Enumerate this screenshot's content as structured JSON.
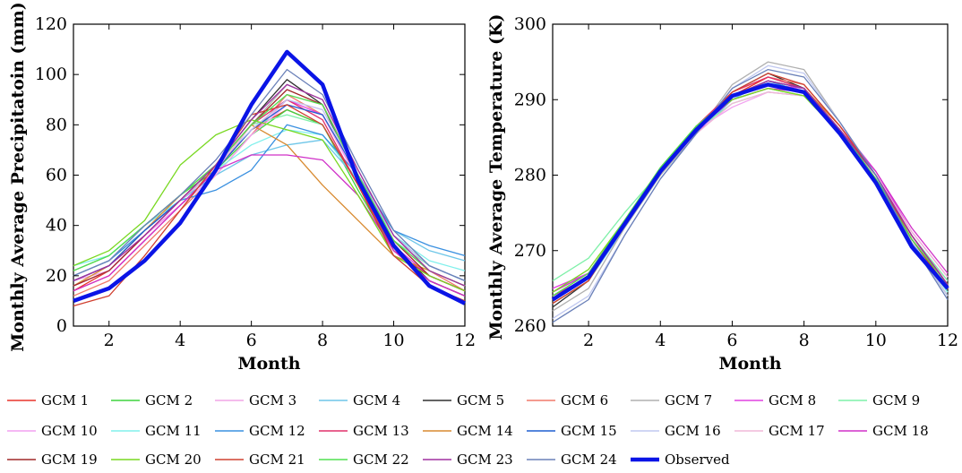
{
  "chart_data": [
    {
      "type": "line",
      "xlabel": "Month",
      "ylabel": "Monthly Average Precipitatoin (mm)",
      "x": [
        1,
        2,
        3,
        4,
        5,
        6,
        7,
        8,
        9,
        10,
        11,
        12
      ],
      "xlim": [
        1,
        12
      ],
      "ylim": [
        0,
        120
      ],
      "xticks": [
        2,
        4,
        6,
        8,
        10,
        12
      ],
      "yticks": [
        0,
        20,
        40,
        60,
        80,
        100,
        120
      ],
      "grid": false,
      "legend_position": "bottom",
      "series": [
        {
          "name": "GCM 1",
          "color": "#e8352b",
          "values": [
            14,
            22,
            36,
            50,
            62,
            78,
            86,
            80,
            56,
            30,
            18,
            12
          ]
        },
        {
          "name": "GCM 2",
          "color": "#3fd43f",
          "values": [
            22,
            28,
            40,
            52,
            62,
            76,
            86,
            80,
            54,
            30,
            20,
            14
          ]
        },
        {
          "name": "GCM 3",
          "color": "#f0a6e6",
          "values": [
            18,
            22,
            36,
            48,
            60,
            76,
            90,
            86,
            60,
            36,
            22,
            16
          ]
        },
        {
          "name": "GCM 4",
          "color": "#6ec6e8",
          "values": [
            20,
            26,
            38,
            50,
            60,
            68,
            72,
            74,
            58,
            38,
            30,
            26
          ]
        },
        {
          "name": "GCM 5",
          "color": "#303030",
          "values": [
            18,
            24,
            38,
            50,
            64,
            82,
            98,
            88,
            58,
            32,
            18,
            12
          ]
        },
        {
          "name": "GCM 6",
          "color": "#f07a6a",
          "values": [
            12,
            18,
            32,
            46,
            60,
            76,
            92,
            84,
            58,
            34,
            22,
            14
          ]
        },
        {
          "name": "GCM 7",
          "color": "#b0b0b0",
          "values": [
            22,
            28,
            40,
            50,
            62,
            80,
            96,
            90,
            62,
            36,
            22,
            16
          ]
        },
        {
          "name": "GCM 8",
          "color": "#e040e0",
          "values": [
            16,
            22,
            36,
            48,
            62,
            78,
            90,
            84,
            58,
            32,
            20,
            14
          ]
        },
        {
          "name": "GCM 9",
          "color": "#7ef0a8",
          "values": [
            20,
            26,
            40,
            52,
            64,
            80,
            84,
            80,
            56,
            34,
            24,
            18
          ]
        },
        {
          "name": "GCM 10",
          "color": "#f2a0f0",
          "values": [
            18,
            24,
            36,
            48,
            60,
            76,
            88,
            84,
            58,
            34,
            22,
            16
          ]
        },
        {
          "name": "GCM 11",
          "color": "#80f0ec",
          "values": [
            24,
            28,
            40,
            50,
            62,
            72,
            78,
            76,
            58,
            36,
            26,
            22
          ]
        },
        {
          "name": "GCM 12",
          "color": "#3a90e0",
          "values": [
            20,
            26,
            38,
            50,
            54,
            62,
            80,
            76,
            60,
            38,
            32,
            28
          ]
        },
        {
          "name": "GCM 13",
          "color": "#e0306a",
          "values": [
            14,
            20,
            34,
            48,
            62,
            80,
            90,
            82,
            56,
            30,
            20,
            14
          ]
        },
        {
          "name": "GCM 14",
          "color": "#d88a30",
          "values": [
            16,
            24,
            38,
            52,
            64,
            80,
            72,
            56,
            42,
            28,
            22,
            16
          ]
        },
        {
          "name": "GCM 15",
          "color": "#1f5fd0",
          "values": [
            18,
            24,
            38,
            50,
            62,
            78,
            88,
            84,
            60,
            36,
            24,
            18
          ]
        },
        {
          "name": "GCM 16",
          "color": "#c0c8f0",
          "values": [
            20,
            26,
            40,
            52,
            64,
            78,
            90,
            86,
            60,
            36,
            24,
            18
          ]
        },
        {
          "name": "GCM 17",
          "color": "#f0b8d8",
          "values": [
            16,
            22,
            36,
            50,
            62,
            80,
            92,
            88,
            62,
            36,
            22,
            16
          ]
        },
        {
          "name": "GCM 18",
          "color": "#d030c8",
          "values": [
            14,
            20,
            34,
            48,
            62,
            68,
            68,
            66,
            52,
            30,
            18,
            12
          ]
        },
        {
          "name": "GCM 19",
          "color": "#a02828",
          "values": [
            16,
            22,
            36,
            50,
            64,
            80,
            94,
            88,
            60,
            34,
            20,
            14
          ]
        },
        {
          "name": "GCM 20",
          "color": "#78d820",
          "values": [
            24,
            30,
            42,
            64,
            76,
            82,
            78,
            74,
            52,
            28,
            20,
            14
          ]
        },
        {
          "name": "GCM 21",
          "color": "#d04030",
          "values": [
            8,
            12,
            28,
            46,
            64,
            84,
            88,
            80,
            56,
            28,
            16,
            10
          ]
        },
        {
          "name": "GCM 22",
          "color": "#50e050",
          "values": [
            22,
            28,
            40,
            52,
            64,
            80,
            92,
            88,
            60,
            34,
            22,
            16
          ]
        },
        {
          "name": "GCM 23",
          "color": "#a030a0",
          "values": [
            18,
            24,
            36,
            50,
            64,
            82,
            96,
            90,
            62,
            36,
            22,
            16
          ]
        },
        {
          "name": "GCM 24",
          "color": "#6a80b8",
          "values": [
            20,
            26,
            40,
            52,
            66,
            84,
            102,
            92,
            64,
            38,
            24,
            18
          ]
        },
        {
          "name": "Observed",
          "color": "#0a14e6",
          "values": [
            10,
            15,
            26,
            41,
            62,
            88,
            109,
            96,
            58,
            32,
            16,
            9
          ]
        }
      ]
    },
    {
      "type": "line",
      "xlabel": "Month",
      "ylabel": "Monthly Average Temperature (K)",
      "x": [
        1,
        2,
        3,
        4,
        5,
        6,
        7,
        8,
        9,
        10,
        11,
        12
      ],
      "xlim": [
        1,
        12
      ],
      "ylim": [
        260,
        300
      ],
      "xticks": [
        2,
        4,
        6,
        8,
        10,
        12
      ],
      "yticks": [
        260,
        270,
        280,
        290,
        300
      ],
      "grid": false,
      "legend_position": "bottom",
      "series": [
        {
          "name": "GCM 1",
          "color": "#e8352b",
          "values": [
            263.5,
            266.5,
            273.5,
            280.5,
            286,
            290.5,
            293,
            291.5,
            286,
            279.5,
            271.5,
            265
          ]
        },
        {
          "name": "GCM 2",
          "color": "#3fd43f",
          "values": [
            264.5,
            267,
            274,
            281,
            286.5,
            290,
            291.5,
            290.5,
            285.5,
            279,
            271,
            264.5
          ]
        },
        {
          "name": "GCM 3",
          "color": "#f0a6e6",
          "values": [
            264,
            266.5,
            273.5,
            280.5,
            286,
            290.5,
            292,
            291,
            285.5,
            279.5,
            271.5,
            266
          ]
        },
        {
          "name": "GCM 4",
          "color": "#6ec6e8",
          "values": [
            263,
            266,
            273,
            280,
            285.5,
            290,
            292.5,
            291,
            285.5,
            279,
            271,
            265
          ]
        },
        {
          "name": "GCM 5",
          "color": "#303030",
          "values": [
            262.5,
            266,
            273.5,
            280.5,
            286,
            291,
            293.5,
            291.5,
            286,
            279.5,
            271,
            264
          ]
        },
        {
          "name": "GCM 6",
          "color": "#f07a6a",
          "values": [
            263.5,
            266.5,
            273.5,
            280,
            286,
            291,
            293,
            292,
            286.5,
            280,
            272,
            265.5
          ]
        },
        {
          "name": "GCM 7",
          "color": "#b0b0b0",
          "values": [
            262,
            265,
            273,
            280,
            285.5,
            292,
            295,
            294,
            287,
            280,
            271,
            264
          ]
        },
        {
          "name": "GCM 8",
          "color": "#e040e0",
          "values": [
            265,
            267,
            274,
            280.5,
            285.5,
            290.5,
            292,
            291.5,
            286.5,
            280.5,
            272.5,
            266.5
          ]
        },
        {
          "name": "GCM 9",
          "color": "#7ef0a8",
          "values": [
            266,
            269,
            275,
            280.5,
            286,
            289.5,
            291,
            290.5,
            285.5,
            279.5,
            272,
            266
          ]
        },
        {
          "name": "GCM 10",
          "color": "#f2a0f0",
          "values": [
            264,
            267,
            274,
            280.5,
            286,
            289,
            291,
            290.5,
            286,
            280,
            272,
            265.5
          ]
        },
        {
          "name": "GCM 11",
          "color": "#80f0ec",
          "values": [
            263,
            266,
            273.5,
            280.5,
            286,
            290.5,
            292.5,
            291.5,
            286,
            279.5,
            271,
            264.5
          ]
        },
        {
          "name": "GCM 12",
          "color": "#3a90e0",
          "values": [
            263.5,
            266.5,
            273.5,
            280.5,
            286,
            290.5,
            292.5,
            291,
            285.5,
            279,
            271,
            265
          ]
        },
        {
          "name": "GCM 13",
          "color": "#e0306a",
          "values": [
            264,
            266.5,
            273.5,
            280.5,
            286.5,
            291,
            293,
            291.5,
            286,
            280,
            272,
            265.5
          ]
        },
        {
          "name": "GCM 14",
          "color": "#d88a30",
          "values": [
            263,
            266,
            273.5,
            280.5,
            286,
            290.5,
            292.5,
            291.5,
            286.5,
            280,
            271.5,
            265
          ]
        },
        {
          "name": "GCM 15",
          "color": "#1f5fd0",
          "values": [
            263.5,
            266.5,
            273.5,
            280.5,
            286,
            290.5,
            292.5,
            291.5,
            286,
            279.5,
            271.5,
            265
          ]
        },
        {
          "name": "GCM 16",
          "color": "#c0c8f0",
          "values": [
            261,
            264,
            272,
            279.5,
            285.5,
            291.5,
            294.5,
            293.5,
            287,
            280,
            271,
            264
          ]
        },
        {
          "name": "GCM 17",
          "color": "#f0b8d8",
          "values": [
            264.5,
            267,
            274,
            280.5,
            285.5,
            289.5,
            291,
            290.5,
            286,
            280,
            272.5,
            266.5
          ]
        },
        {
          "name": "GCM 18",
          "color": "#d030c8",
          "values": [
            264.5,
            267,
            274,
            280.5,
            286,
            290,
            291.5,
            291,
            286,
            280.5,
            273,
            267
          ]
        },
        {
          "name": "GCM 19",
          "color": "#a02828",
          "values": [
            263.5,
            266.5,
            273.5,
            280.5,
            286,
            290.5,
            292,
            291,
            286,
            280,
            272,
            265.5
          ]
        },
        {
          "name": "GCM 20",
          "color": "#78d820",
          "values": [
            264.5,
            267.5,
            274,
            281,
            286.5,
            290,
            291.5,
            290.5,
            285.5,
            279.5,
            271.5,
            265.5
          ]
        },
        {
          "name": "GCM 21",
          "color": "#d04030",
          "values": [
            263,
            266,
            273.5,
            280.5,
            286,
            291,
            293.5,
            292,
            286.5,
            280,
            271.5,
            265
          ]
        },
        {
          "name": "GCM 22",
          "color": "#50e050",
          "values": [
            264,
            267,
            274,
            281,
            286.5,
            290.5,
            292,
            291,
            286,
            279.5,
            271.5,
            265.5
          ]
        },
        {
          "name": "GCM 23",
          "color": "#a030a0",
          "values": [
            263.5,
            266.5,
            273.5,
            280.5,
            286,
            290.5,
            292.5,
            291.5,
            286,
            280,
            272,
            265.5
          ]
        },
        {
          "name": "GCM 24",
          "color": "#6a80b8",
          "values": [
            260.5,
            263.5,
            272,
            279.5,
            285.5,
            291.5,
            294,
            293,
            287,
            280,
            271,
            263.5
          ]
        },
        {
          "name": "Observed",
          "color": "#0a14e6",
          "values": [
            263.5,
            266.5,
            273.5,
            280.5,
            286,
            290.5,
            292,
            291,
            285.5,
            279,
            270.5,
            265
          ]
        }
      ]
    }
  ]
}
